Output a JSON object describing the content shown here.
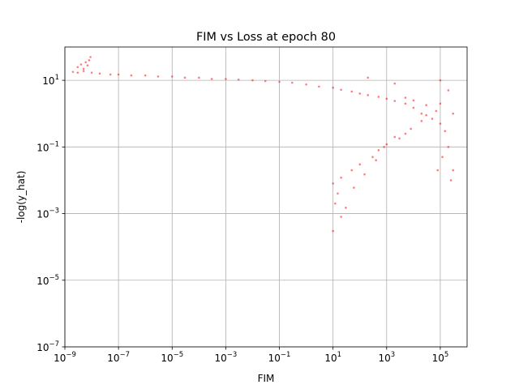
{
  "chart_data": {
    "type": "scatter",
    "title": "FIM vs Loss at epoch 80",
    "xlabel": "FIM",
    "ylabel": "-log(y_hat)",
    "xscale": "log",
    "yscale": "log",
    "xlim": [
      1e-09,
      1000000.0
    ],
    "ylim": [
      1e-07,
      100
    ],
    "grid": true,
    "marker_color": "#ff0000",
    "x_ticks": [
      {
        "base": "10",
        "exp": "−9",
        "value": 1e-09
      },
      {
        "base": "10",
        "exp": "−7",
        "value": 1e-07
      },
      {
        "base": "10",
        "exp": "−5",
        "value": 1e-05
      },
      {
        "base": "10",
        "exp": "−3",
        "value": 0.001
      },
      {
        "base": "10",
        "exp": "−1",
        "value": 0.1
      },
      {
        "base": "10",
        "exp": "1",
        "value": 10
      },
      {
        "base": "10",
        "exp": "3",
        "value": 1000
      },
      {
        "base": "10",
        "exp": "5",
        "value": 100000
      }
    ],
    "y_ticks": [
      {
        "base": "10",
        "exp": "1",
        "value": 10
      },
      {
        "base": "10",
        "exp": "−1",
        "value": 0.1
      },
      {
        "base": "10",
        "exp": "−3",
        "value": 0.001
      },
      {
        "base": "10",
        "exp": "−5",
        "value": 1e-05
      },
      {
        "base": "10",
        "exp": "−7",
        "value": 1e-07
      }
    ],
    "series": [
      {
        "points": [
          [
            2e-09,
            18
          ],
          [
            3e-09,
            25
          ],
          [
            4e-09,
            30
          ],
          [
            5e-09,
            22
          ],
          [
            6e-09,
            35
          ],
          [
            7e-09,
            28
          ],
          [
            8e-09,
            40
          ],
          [
            9e-09,
            50
          ],
          [
            5e-09,
            19
          ],
          [
            3e-09,
            17
          ],
          [
            1e-08,
            17
          ],
          [
            2e-08,
            16
          ],
          [
            5e-08,
            15
          ],
          [
            1e-07,
            15
          ],
          [
            3e-07,
            14
          ],
          [
            1e-06,
            14
          ],
          [
            3e-06,
            13
          ],
          [
            1e-05,
            13
          ],
          [
            3e-05,
            12
          ],
          [
            0.0001,
            12
          ],
          [
            0.0003,
            11
          ],
          [
            0.001,
            11
          ],
          [
            0.003,
            10.5
          ],
          [
            0.01,
            10
          ],
          [
            0.03,
            9.5
          ],
          [
            0.1,
            9
          ],
          [
            0.3,
            8.5
          ],
          [
            1,
            7.5
          ],
          [
            3,
            6.5
          ],
          [
            10,
            6
          ],
          [
            20,
            5.2
          ],
          [
            50,
            4.6
          ],
          [
            100,
            4
          ],
          [
            200,
            3.6
          ],
          [
            500,
            3.2
          ],
          [
            1000,
            2.8
          ],
          [
            2000,
            2.4
          ],
          [
            5000,
            2
          ],
          [
            10000.0,
            1.5
          ],
          [
            20000.0,
            1
          ],
          [
            50000.0,
            0.7
          ],
          [
            100000.0,
            0.5
          ],
          [
            30000.0,
            0.9
          ],
          [
            20000.0,
            0.6
          ],
          [
            8000.0,
            0.35
          ],
          [
            5000.0,
            0.25
          ],
          [
            3000.0,
            0.18
          ],
          [
            1000.0,
            0.12
          ],
          [
            500,
            0.08
          ],
          [
            300,
            0.05
          ],
          [
            100,
            0.03
          ],
          [
            50,
            0.02
          ],
          [
            20,
            0.012
          ],
          [
            10,
            0.008
          ],
          [
            15,
            0.004
          ],
          [
            12,
            0.002
          ],
          [
            20,
            0.0008
          ],
          [
            10,
            0.0003
          ],
          [
            30,
            0.0015
          ],
          [
            60,
            0.006
          ],
          [
            150,
            0.015
          ],
          [
            400,
            0.04
          ],
          [
            800,
            0.1
          ],
          [
            2000,
            0.2
          ],
          [
            100000.0,
            2
          ],
          [
            200000.0,
            5
          ],
          [
            300000.0,
            1
          ],
          [
            200000.0,
            0.1
          ],
          [
            300000.0,
            0.02
          ],
          [
            5000.0,
            3
          ],
          [
            10000.0,
            2.5
          ],
          [
            30000.0,
            1.8
          ],
          [
            70000.0,
            1.2
          ],
          [
            150000.0,
            0.3
          ],
          [
            120000.0,
            0.05
          ],
          [
            80000.0,
            0.02
          ],
          [
            250000.0,
            0.01
          ],
          [
            100000.0,
            10
          ],
          [
            2000.0,
            8
          ],
          [
            200,
            12
          ]
        ]
      }
    ]
  }
}
